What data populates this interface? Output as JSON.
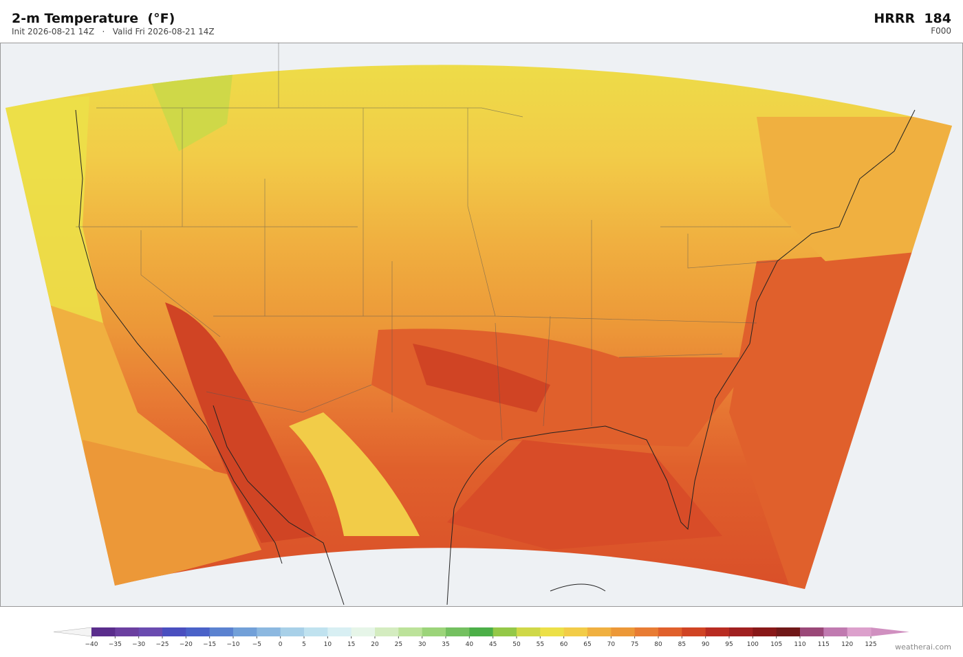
{
  "header": {
    "title": "2-m Temperature  (°F)",
    "subtitle": "Init 2026-08-21 14Z   ·   Valid Fri 2026-08-21 14Z",
    "model": "HRRR  184",
    "forecast_hour": "F000"
  },
  "colorbar": {
    "ticks": [
      {
        "value": -40,
        "label": "−40"
      },
      {
        "value": -35,
        "label": "−35"
      },
      {
        "value": -30,
        "label": "−30"
      },
      {
        "value": -25,
        "label": "−25"
      },
      {
        "value": -20,
        "label": "−20"
      },
      {
        "value": -15,
        "label": "−15"
      },
      {
        "value": -10,
        "label": "−10"
      },
      {
        "value": -5,
        "label": "−5"
      },
      0,
      5,
      10,
      15,
      20,
      25,
      30,
      35,
      40,
      45,
      50,
      55,
      60,
      65,
      70,
      75,
      80,
      85,
      90,
      95,
      100,
      105,
      110,
      115,
      120,
      125
    ],
    "colors": [
      "#5a2d8c",
      "#6b3fa0",
      "#6a4bb0",
      "#4a4fbf",
      "#4a62c8",
      "#5b82d0",
      "#72a0d8",
      "#8cb8e0",
      "#a8d0e8",
      "#c0e2ef",
      "#d8eff3",
      "#e6f5e8",
      "#d4ecc0",
      "#bce29a",
      "#9cd47a",
      "#74c060",
      "#4caf48",
      "#94c848",
      "#cfd848",
      "#ece048",
      "#f2cc48",
      "#f0b040",
      "#ec9838",
      "#e87c34",
      "#e0602c",
      "#d04424",
      "#b82c22",
      "#a02020",
      "#881818",
      "#701818",
      "#9a4878",
      "#c07ab0",
      "#dca0cc"
    ],
    "extend_colors": [
      "#f4f4f4",
      "#d090c0"
    ]
  },
  "footer": {
    "credit": "weatherai.com"
  }
}
